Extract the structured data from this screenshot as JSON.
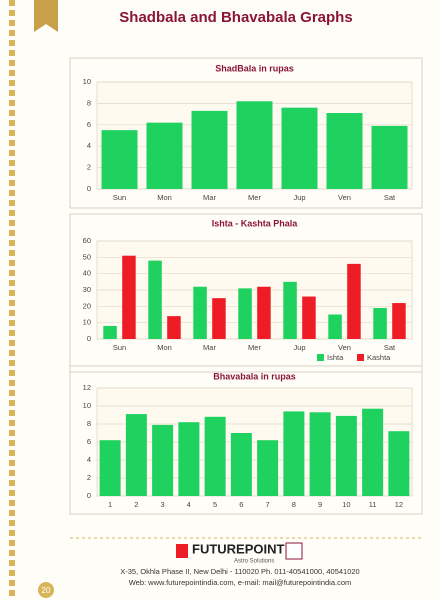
{
  "title": "Shadbala and Bhavabala Graphs",
  "chart_data": [
    {
      "type": "bar",
      "title": "ShadBala in rupas",
      "categories": [
        "Sun",
        "Mon",
        "Mar",
        "Mer",
        "Jup",
        "Ven",
        "Sat"
      ],
      "values": [
        5.5,
        6.2,
        7.3,
        8.2,
        7.6,
        7.1,
        5.9
      ],
      "color": "#1fd15f",
      "ylim": [
        0,
        10
      ],
      "yticks": [
        0,
        2,
        4,
        6,
        8,
        10
      ],
      "grid": true
    },
    {
      "type": "bar",
      "title": "Ishta - Kashta Phala",
      "categories": [
        "Sun",
        "Mon",
        "Mar",
        "Mer",
        "Jup",
        "Ven",
        "Sat"
      ],
      "series": [
        {
          "name": "Ishta",
          "color": "#1fd15f",
          "values": [
            8,
            48,
            32,
            31,
            35,
            15,
            19
          ]
        },
        {
          "name": "Kashta",
          "color": "#ee1c25",
          "values": [
            51,
            14,
            25,
            32,
            26,
            46,
            22
          ]
        }
      ],
      "ylim": [
        0,
        60
      ],
      "yticks": [
        0,
        10,
        20,
        30,
        40,
        50,
        60
      ],
      "grid": true,
      "legend": "bottom-right"
    },
    {
      "type": "bar",
      "title": "Bhavabala in rupas",
      "categories": [
        "1",
        "2",
        "3",
        "4",
        "5",
        "6",
        "7",
        "8",
        "9",
        "10",
        "11",
        "12"
      ],
      "values": [
        6.2,
        9.1,
        7.9,
        8.2,
        8.8,
        7.0,
        6.2,
        9.4,
        9.3,
        8.9,
        9.7,
        7.2
      ],
      "color": "#1fd15f",
      "ylim": [
        0,
        12
      ],
      "yticks": [
        0,
        2,
        4,
        6,
        8,
        10,
        12
      ],
      "grid": true
    }
  ],
  "footer": {
    "brand": "FUTUREPOINT",
    "tagline": "Astro Solutions",
    "address": "X-35, Okhla Phase II, New Delhi - 110020 Ph. 011-40541000, 40541020",
    "web": "Web: www.futurepointindia.com, e-mail: mail@futurepointindia.com"
  },
  "page_number": 20
}
